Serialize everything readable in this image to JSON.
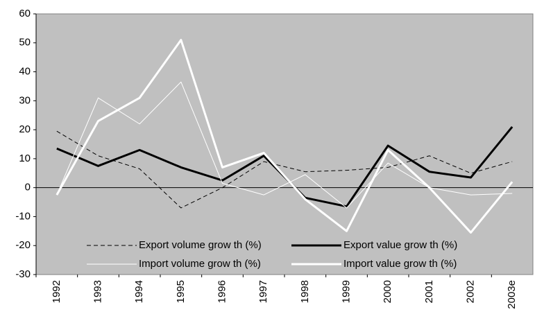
{
  "chart_data": {
    "type": "line",
    "categories": [
      "1992",
      "1993",
      "1994",
      "1995",
      "1996",
      "1997",
      "1998",
      "1999",
      "2000",
      "2001",
      "2002",
      "2003e"
    ],
    "series": [
      {
        "name": "Export volume grow th (%)",
        "color": "#000000",
        "style": "dashed",
        "linewidth": 1,
        "values": [
          19.5,
          11,
          6.5,
          -7,
          0,
          9,
          5.5,
          6,
          7,
          11,
          5,
          9
        ]
      },
      {
        "name": "Export value grow th (%)",
        "color": "#000000",
        "style": "solid",
        "linewidth": 3,
        "values": [
          13.5,
          7.5,
          13,
          7,
          2.5,
          11,
          -3.5,
          -6.5,
          14.5,
          5.5,
          3.5,
          21
        ]
      },
      {
        "name": "Import volume grow th (%)",
        "color": "#ffffff",
        "style": "solid",
        "linewidth": 1,
        "values": [
          -2.5,
          31,
          22,
          36.5,
          1.5,
          -2.5,
          4.5,
          -7,
          8.5,
          0,
          -2.5,
          -2
        ]
      },
      {
        "name": "Import value grow th (%)",
        "color": "#ffffff",
        "style": "solid",
        "linewidth": 3,
        "values": [
          -2.5,
          23,
          31,
          51,
          7,
          12,
          -4,
          -15,
          13,
          0,
          -15.5,
          2
        ]
      }
    ],
    "ylim": [
      -30,
      60
    ],
    "yticks": [
      -30,
      -20,
      -10,
      0,
      10,
      20,
      30,
      40,
      50,
      60
    ],
    "grid": false,
    "background": "#c0c0c0",
    "legend": "bottom"
  }
}
